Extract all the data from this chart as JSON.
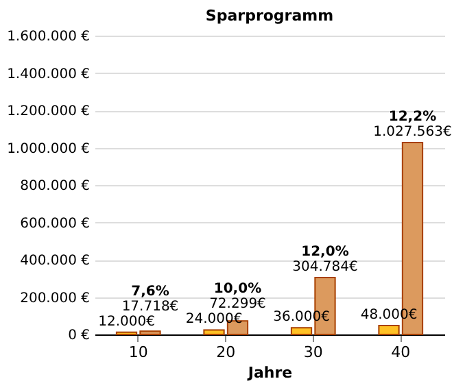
{
  "chart_data": {
    "type": "bar",
    "title": "Sparprogramm",
    "xlabel": "Jahre",
    "categories": [
      "10",
      "20",
      "30",
      "40"
    ],
    "series": [
      {
        "color": "#ffc125",
        "values": [
          12000,
          24000,
          36000,
          48000
        ],
        "value_labels": [
          "12.000€",
          "24.000€",
          "36.000€",
          "48.000€"
        ]
      },
      {
        "color": "#dc9a5e",
        "values": [
          17718,
          72299,
          304784,
          1027563
        ],
        "value_labels": [
          "17.718€",
          "72.299€",
          "304.784€",
          "1.027.563€"
        ]
      }
    ],
    "annotations": [
      {
        "text": "7,6%",
        "x": "10",
        "y": 17718
      },
      {
        "text": "10,0%",
        "x": "20",
        "y": 72299
      },
      {
        "text": "12,0%",
        "x": "30",
        "y": 304784
      },
      {
        "text": "12,2%",
        "x": "40",
        "y": 1027563
      }
    ],
    "ylim": [
      0,
      1600000
    ],
    "yticks": [
      {
        "value": 0,
        "label": "0 €"
      },
      {
        "value": 200000,
        "label": "200.000 €"
      },
      {
        "value": 400000,
        "label": "400.000 €"
      },
      {
        "value": 600000,
        "label": "600.000 €"
      },
      {
        "value": 800000,
        "label": "800.000 €"
      },
      {
        "value": 1000000,
        "label": "1.000.000 €"
      },
      {
        "value": 1200000,
        "label": "1.200.000 €"
      },
      {
        "value": 1400000,
        "label": "1.400.000 €"
      },
      {
        "value": 1600000,
        "label": "1.600.000 €"
      }
    ],
    "grid": "y"
  }
}
